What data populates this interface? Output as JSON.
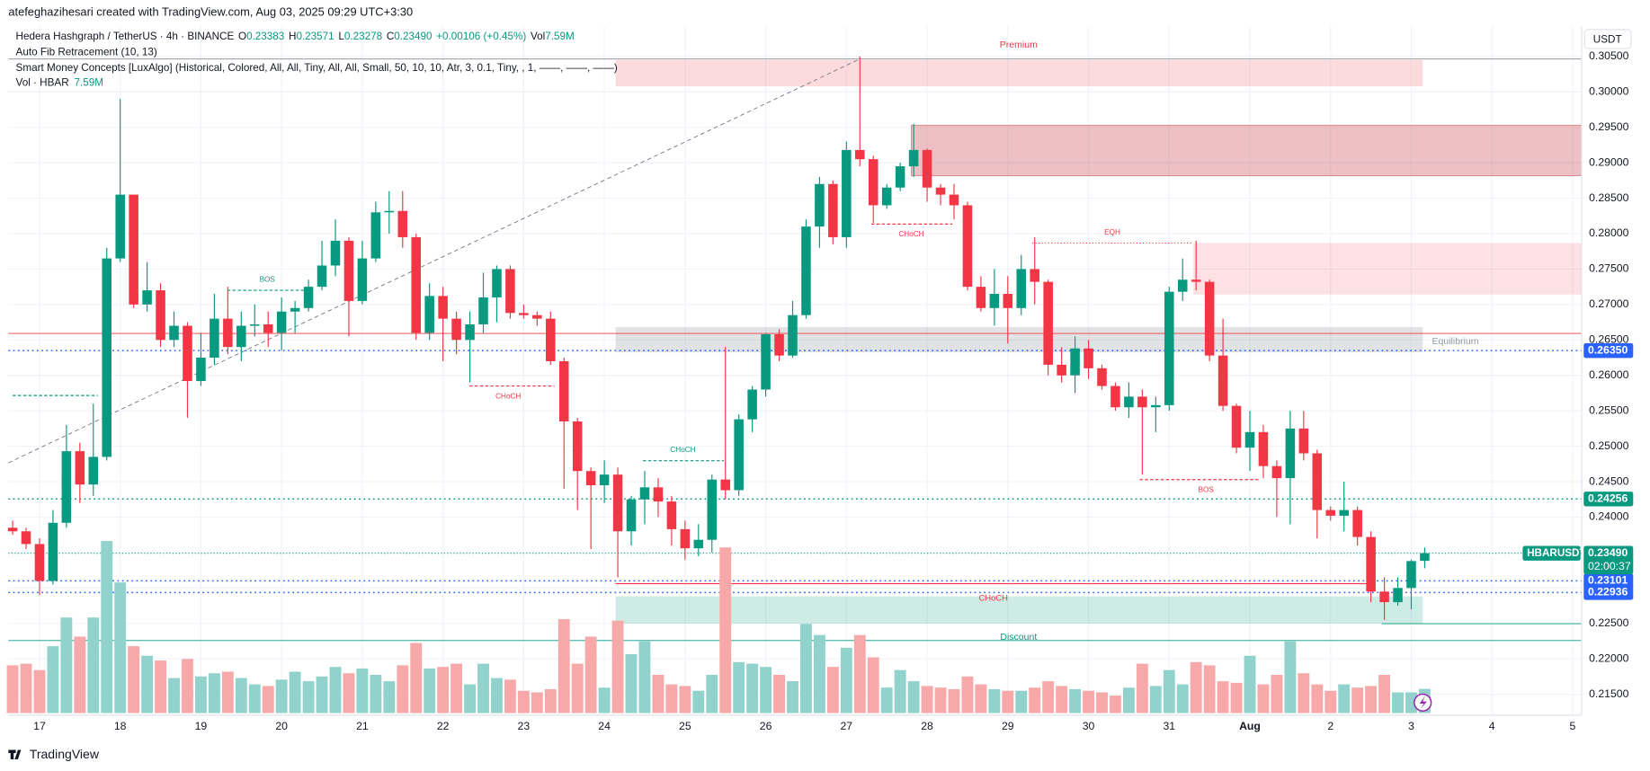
{
  "chart_data": {
    "type": "candlestick",
    "header": "atefeghazihesari created with TradingView.com, Aug 03, 2025 09:29 UTC+3:30",
    "symbol": "Hedera Hashgraph / TetherUS · 4h · BINANCE",
    "legend": {
      "o_label": "O",
      "o": "0.23383",
      "h_label": "H",
      "h": "0.23571",
      "l_label": "L",
      "l": "0.23278",
      "c_label": "C",
      "c": "0.23490",
      "change": "+0.00106 (+0.45%)",
      "vol_label": "Vol",
      "vol": "7.59M"
    },
    "indicators": [
      "Auto Fib Retracement (10, 13)",
      "Smart Money Concepts [LuxAlgo] (Historical, Colored, All, All, Tiny, All, All, Small, 50, 10, 10, Atr, 3, 0.1, Tiny, , 1, ——, ——, ——)"
    ],
    "volume_legend": {
      "name": "Vol · HBAR",
      "value": "7.59M"
    },
    "currency": "USDT",
    "footer": "TradingView",
    "annotations": {
      "premium": "Premium",
      "equilibrium": "Equilibrium",
      "discount": "Discount",
      "bos1": "BOS",
      "choch1": "CHoCH",
      "choch2": "CHoCH",
      "choch3": "CHoCH",
      "eqh": "EQH",
      "bos2": "BOS",
      "choch4": "CHoCH"
    },
    "series_name": "HBARUSDT",
    "countdown": "02:00:37",
    "up_color": "#089981",
    "down_color": "#f23645",
    "volume_up_color": "#92d2cc",
    "volume_down_color": "#f7a9a9",
    "ylim": [
      0.2125,
      0.3085
    ],
    "yticks": [
      {
        "value": 0.305,
        "label": "0.30500"
      },
      {
        "value": 0.3,
        "label": "0.30000"
      },
      {
        "value": 0.295,
        "label": "0.29500"
      },
      {
        "value": 0.29,
        "label": "0.29000"
      },
      {
        "value": 0.285,
        "label": "0.28500"
      },
      {
        "value": 0.28,
        "label": "0.28000"
      },
      {
        "value": 0.275,
        "label": "0.27500"
      },
      {
        "value": 0.27,
        "label": "0.27000"
      },
      {
        "value": 0.265,
        "label": "0.26500"
      },
      {
        "value": 0.26,
        "label": "0.26000"
      },
      {
        "value": 0.255,
        "label": "0.25500"
      },
      {
        "value": 0.25,
        "label": "0.25000"
      },
      {
        "value": 0.245,
        "label": "0.24500"
      },
      {
        "value": 0.24,
        "label": "0.24000"
      },
      {
        "value": 0.235,
        "label": "0.23500"
      },
      {
        "value": 0.23,
        "label": "0.23000"
      },
      {
        "value": 0.225,
        "label": "0.22500"
      },
      {
        "value": 0.22,
        "label": "0.22000"
      },
      {
        "value": 0.215,
        "label": "0.21500"
      }
    ],
    "xticks": [
      "17",
      "18",
      "19",
      "20",
      "21",
      "22",
      "23",
      "24",
      "25",
      "26",
      "27",
      "28",
      "29",
      "30",
      "31",
      "Aug",
      "2",
      "3",
      "4",
      "5"
    ],
    "grid": true,
    "price_lines": [
      {
        "value": 0.2635,
        "label": "0.26350",
        "color": "#2962ff"
      },
      {
        "value": 0.24256,
        "label": "0.24256",
        "color": "#089981"
      },
      {
        "value": 0.23101,
        "label": "0.23101",
        "color": "#2962ff"
      },
      {
        "value": 0.22936,
        "label": "0.22936",
        "color": "#2962ff"
      }
    ],
    "last_price": {
      "value": 0.2349,
      "label": "0.23490"
    },
    "open": [
      0.2385,
      0.238,
      0.2362,
      0.231,
      0.2392,
      0.2493,
      0.2446,
      0.2485,
      0.2765,
      0.2855,
      0.27,
      0.272,
      0.265,
      0.267,
      0.2592,
      0.2625,
      0.268,
      0.264,
      0.267,
      0.2672,
      0.266,
      0.269,
      0.2695,
      0.2725,
      0.2755,
      0.279,
      0.2705,
      0.2765,
      0.283,
      0.2832,
      0.2795,
      0.266,
      0.2712,
      0.268,
      0.265,
      0.2672,
      0.271,
      0.275,
      0.2688,
      0.2685,
      0.268,
      0.262,
      0.2535,
      0.2465,
      0.2445,
      0.246,
      0.238,
      0.2425,
      0.2442,
      0.2422,
      0.2383,
      0.2356,
      0.2368,
      0.2453,
      0.2438,
      0.2538,
      0.258,
      0.2658,
      0.2628,
      0.2685,
      0.281,
      0.287,
      0.2795,
      0.2918,
      0.2905,
      0.284,
      0.2865,
      0.2895,
      0.2918,
      0.2865,
      0.2855,
      0.284,
      0.2725,
      0.2695,
      0.2715,
      0.2695,
      0.275,
      0.2732,
      0.2615,
      0.26,
      0.2638,
      0.261,
      0.2585,
      0.2555,
      0.257,
      0.2555,
      0.2558,
      0.2718,
      0.2735,
      0.2732,
      0.2628,
      0.2557,
      0.2498,
      0.252,
      0.2472,
      0.2455,
      0.2525,
      0.249,
      0.241,
      0.2402,
      0.241,
      0.2372,
      0.2295,
      0.228,
      0.23,
      0.23383
    ],
    "high": [
      0.2395,
      0.2385,
      0.237,
      0.241,
      0.253,
      0.2505,
      0.256,
      0.278,
      0.299,
      0.2855,
      0.276,
      0.273,
      0.269,
      0.2675,
      0.266,
      0.2715,
      0.2725,
      0.269,
      0.27,
      0.269,
      0.271,
      0.2705,
      0.2735,
      0.279,
      0.282,
      0.2795,
      0.279,
      0.2845,
      0.286,
      0.286,
      0.28,
      0.273,
      0.2725,
      0.269,
      0.269,
      0.2745,
      0.2755,
      0.2755,
      0.27,
      0.269,
      0.269,
      0.2625,
      0.254,
      0.247,
      0.248,
      0.247,
      0.243,
      0.2465,
      0.2455,
      0.243,
      0.2395,
      0.239,
      0.246,
      0.264,
      0.2545,
      0.2585,
      0.266,
      0.2665,
      0.2705,
      0.282,
      0.288,
      0.2875,
      0.293,
      0.305,
      0.291,
      0.287,
      0.29,
      0.2955,
      0.292,
      0.287,
      0.287,
      0.2845,
      0.274,
      0.275,
      0.274,
      0.277,
      0.2795,
      0.2735,
      0.264,
      0.2655,
      0.265,
      0.2615,
      0.259,
      0.259,
      0.258,
      0.257,
      0.2725,
      0.2765,
      0.279,
      0.2735,
      0.268,
      0.256,
      0.255,
      0.253,
      0.248,
      0.255,
      0.255,
      0.2495,
      0.2415,
      0.245,
      0.2415,
      0.238,
      0.2315,
      0.2315,
      0.234,
      0.23571
    ],
    "low": [
      0.2375,
      0.2355,
      0.229,
      0.2305,
      0.2385,
      0.242,
      0.243,
      0.248,
      0.276,
      0.2695,
      0.269,
      0.264,
      0.264,
      0.254,
      0.2585,
      0.2615,
      0.263,
      0.262,
      0.2655,
      0.264,
      0.2635,
      0.266,
      0.269,
      0.272,
      0.274,
      0.2655,
      0.27,
      0.276,
      0.28,
      0.278,
      0.265,
      0.265,
      0.262,
      0.263,
      0.259,
      0.266,
      0.2675,
      0.268,
      0.268,
      0.267,
      0.2615,
      0.244,
      0.241,
      0.2355,
      0.242,
      0.2315,
      0.236,
      0.239,
      0.24,
      0.236,
      0.234,
      0.2345,
      0.235,
      0.2425,
      0.243,
      0.252,
      0.257,
      0.262,
      0.2625,
      0.268,
      0.278,
      0.2785,
      0.278,
      0.2895,
      0.2815,
      0.2835,
      0.286,
      0.288,
      0.2845,
      0.284,
      0.282,
      0.272,
      0.269,
      0.267,
      0.2645,
      0.2685,
      0.27,
      0.26,
      0.259,
      0.2575,
      0.2595,
      0.258,
      0.255,
      0.254,
      0.246,
      0.252,
      0.255,
      0.2705,
      0.272,
      0.262,
      0.255,
      0.249,
      0.2465,
      0.2455,
      0.24,
      0.239,
      0.248,
      0.237,
      0.2395,
      0.238,
      0.236,
      0.228,
      0.2255,
      0.2275,
      0.227,
      0.23278
    ],
    "close": [
      0.238,
      0.2362,
      0.231,
      0.2392,
      0.2493,
      0.2446,
      0.2485,
      0.2765,
      0.2855,
      0.27,
      0.272,
      0.265,
      0.267,
      0.2592,
      0.2625,
      0.268,
      0.264,
      0.267,
      0.2672,
      0.266,
      0.269,
      0.2695,
      0.2725,
      0.2755,
      0.279,
      0.2705,
      0.2765,
      0.283,
      0.2832,
      0.2795,
      0.266,
      0.2712,
      0.268,
      0.265,
      0.2672,
      0.271,
      0.275,
      0.2688,
      0.2685,
      0.268,
      0.262,
      0.2535,
      0.2465,
      0.2445,
      0.246,
      0.238,
      0.2425,
      0.2442,
      0.2422,
      0.2383,
      0.2356,
      0.2368,
      0.2453,
      0.2438,
      0.2538,
      0.258,
      0.2658,
      0.2628,
      0.2685,
      0.281,
      0.287,
      0.2795,
      0.2918,
      0.2905,
      0.284,
      0.2865,
      0.2895,
      0.2918,
      0.2865,
      0.2855,
      0.284,
      0.2725,
      0.2695,
      0.2715,
      0.2695,
      0.275,
      0.2732,
      0.2615,
      0.26,
      0.2638,
      0.261,
      0.2585,
      0.2555,
      0.257,
      0.2555,
      0.2558,
      0.2718,
      0.2735,
      0.2732,
      0.2628,
      0.2557,
      0.2498,
      0.252,
      0.2472,
      0.2455,
      0.2525,
      0.249,
      0.241,
      0.2402,
      0.241,
      0.2372,
      0.2295,
      0.228,
      0.23,
      0.2338,
      0.2349
    ],
    "volume": [
      15,
      15.5,
      13.5,
      21,
      30,
      24,
      30,
      54,
      41,
      21,
      18,
      16.5,
      11,
      17,
      11.5,
      12.5,
      13,
      11,
      9,
      8.5,
      10.5,
      13,
      10,
      11.5,
      14.5,
      12.5,
      14,
      12,
      10,
      15,
      22,
      14,
      14.5,
      15.5,
      9,
      15.5,
      11,
      10.5,
      7,
      6.5,
      7.5,
      29.5,
      15.5,
      24,
      8,
      29,
      18.5,
      22.5,
      12,
      9,
      8.5,
      7,
      12,
      52,
      16,
      15.5,
      14.5,
      12,
      10,
      28,
      24.5,
      14.5,
      20.5,
      24.5,
      17.5,
      8,
      13.5,
      10,
      8.5,
      8,
      7.5,
      11.5,
      9,
      7.5,
      7,
      7,
      8,
      10,
      8.5,
      7.5,
      7,
      6.5,
      5.5,
      8,
      15.5,
      8.5,
      13.5,
      9,
      16,
      15,
      10,
      9.5,
      18,
      9,
      12,
      22.5,
      12.5,
      9,
      7,
      9,
      8,
      8.5,
      12,
      6.5,
      6.5,
      7.59
    ]
  }
}
